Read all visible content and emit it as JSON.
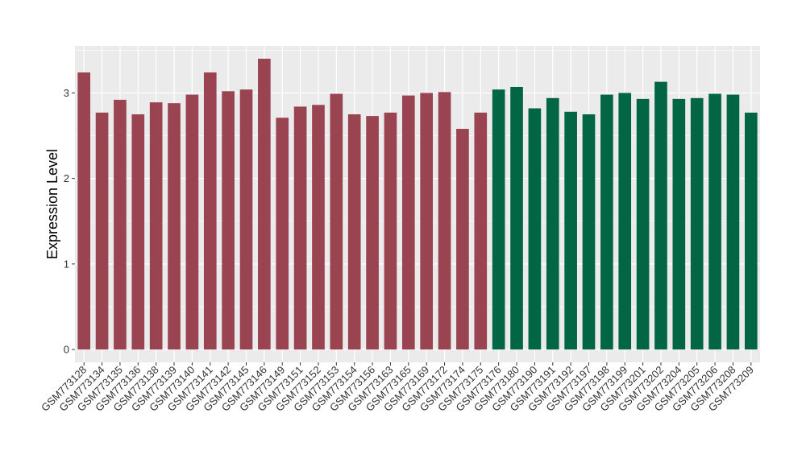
{
  "chart_data": {
    "type": "bar",
    "title": "",
    "xlabel": "",
    "ylabel": "Expression Level",
    "ylim": [
      -0.15,
      3.55
    ],
    "yticks": [
      0,
      1,
      2,
      3
    ],
    "grid": true,
    "legend": "none",
    "colors": {
      "group_a": "#9b4451",
      "group_b": "#026645",
      "panel": "#ebebeb",
      "gridline": "#ffffff"
    },
    "categories": [
      "GSM773128",
      "GSM773134",
      "GSM773135",
      "GSM773136",
      "GSM773138",
      "GSM773139",
      "GSM773140",
      "GSM773141",
      "GSM773142",
      "GSM773145",
      "GSM773146",
      "GSM773149",
      "GSM773151",
      "GSM773152",
      "GSM773153",
      "GSM773154",
      "GSM773156",
      "GSM773163",
      "GSM773165",
      "GSM773169",
      "GSM773172",
      "GSM773174",
      "GSM773175",
      "GSM773176",
      "GSM773180",
      "GSM773190",
      "GSM773191",
      "GSM773192",
      "GSM773197",
      "GSM773198",
      "GSM773199",
      "GSM773201",
      "GSM773202",
      "GSM773204",
      "GSM773205",
      "GSM773206",
      "GSM773208",
      "GSM773209"
    ],
    "values": [
      3.24,
      2.77,
      2.92,
      2.75,
      2.89,
      2.88,
      2.98,
      3.24,
      3.02,
      3.04,
      3.4,
      2.71,
      2.84,
      2.86,
      2.99,
      2.75,
      2.73,
      2.77,
      2.97,
      3.0,
      3.01,
      2.58,
      2.77,
      3.04,
      3.07,
      2.82,
      2.94,
      2.78,
      2.75,
      2.98,
      3.0,
      2.93,
      3.13,
      2.93,
      2.94,
      2.99,
      2.98,
      2.77
    ],
    "groups": [
      "a",
      "a",
      "a",
      "a",
      "a",
      "a",
      "a",
      "a",
      "a",
      "a",
      "a",
      "a",
      "a",
      "a",
      "a",
      "a",
      "a",
      "a",
      "a",
      "a",
      "a",
      "a",
      "a",
      "b",
      "b",
      "b",
      "b",
      "b",
      "b",
      "b",
      "b",
      "b",
      "b",
      "b",
      "b",
      "b",
      "b",
      "b"
    ]
  }
}
